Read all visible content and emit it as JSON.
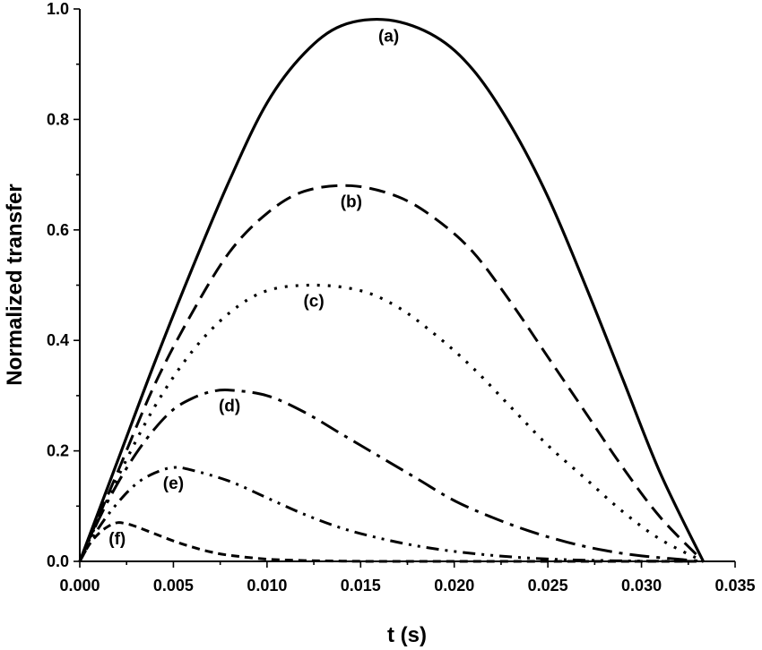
{
  "chart_data": {
    "type": "line",
    "title": "",
    "xlabel": "t (s)",
    "ylabel": "Normalized transfer",
    "xlim": [
      0,
      0.035
    ],
    "ylim": [
      0,
      1.0
    ],
    "x_ticks": [
      "0.000",
      "0.005",
      "0.010",
      "0.015",
      "0.020",
      "0.025",
      "0.030",
      "0.035"
    ],
    "y_ticks": [
      "0.0",
      "0.2",
      "0.4",
      "0.6",
      "0.8",
      "1.0"
    ],
    "grid": false,
    "legend": "none",
    "x_end": 0.0333,
    "series": [
      {
        "label": "(a)",
        "line_style": "solid",
        "peak_x": 0.0165,
        "peak_y": 0.98,
        "values": [
          [
            0.0,
            0.0
          ],
          [
            0.002,
            0.18
          ],
          [
            0.004,
            0.36
          ],
          [
            0.006,
            0.53
          ],
          [
            0.008,
            0.69
          ],
          [
            0.01,
            0.83
          ],
          [
            0.012,
            0.92
          ],
          [
            0.014,
            0.97
          ],
          [
            0.0165,
            0.98
          ],
          [
            0.019,
            0.95
          ],
          [
            0.021,
            0.89
          ],
          [
            0.023,
            0.79
          ],
          [
            0.025,
            0.66
          ],
          [
            0.027,
            0.5
          ],
          [
            0.029,
            0.33
          ],
          [
            0.031,
            0.16
          ],
          [
            0.0333,
            0.0
          ]
        ]
      },
      {
        "label": "(b)",
        "line_style": "dashed",
        "peak_x": 0.0145,
        "peak_y": 0.68,
        "values": [
          [
            0.0,
            0.0
          ],
          [
            0.002,
            0.16
          ],
          [
            0.004,
            0.32
          ],
          [
            0.006,
            0.45
          ],
          [
            0.008,
            0.56
          ],
          [
            0.01,
            0.63
          ],
          [
            0.012,
            0.67
          ],
          [
            0.0145,
            0.68
          ],
          [
            0.017,
            0.66
          ],
          [
            0.019,
            0.62
          ],
          [
            0.021,
            0.56
          ],
          [
            0.023,
            0.47
          ],
          [
            0.025,
            0.37
          ],
          [
            0.027,
            0.27
          ],
          [
            0.029,
            0.17
          ],
          [
            0.031,
            0.08
          ],
          [
            0.0333,
            0.0
          ]
        ]
      },
      {
        "label": "(c)",
        "line_style": "dotted",
        "peak_x": 0.0125,
        "peak_y": 0.5,
        "values": [
          [
            0.0,
            0.0
          ],
          [
            0.002,
            0.15
          ],
          [
            0.004,
            0.28
          ],
          [
            0.006,
            0.38
          ],
          [
            0.008,
            0.45
          ],
          [
            0.01,
            0.49
          ],
          [
            0.0125,
            0.5
          ],
          [
            0.015,
            0.49
          ],
          [
            0.017,
            0.46
          ],
          [
            0.019,
            0.41
          ],
          [
            0.021,
            0.35
          ],
          [
            0.023,
            0.28
          ],
          [
            0.025,
            0.21
          ],
          [
            0.027,
            0.15
          ],
          [
            0.029,
            0.09
          ],
          [
            0.031,
            0.04
          ],
          [
            0.0333,
            0.0
          ]
        ]
      },
      {
        "label": "(d)",
        "line_style": "dash-dot",
        "peak_x": 0.008,
        "peak_y": 0.31,
        "values": [
          [
            0.0,
            0.0
          ],
          [
            0.001,
            0.075
          ],
          [
            0.002,
            0.14
          ],
          [
            0.003,
            0.195
          ],
          [
            0.004,
            0.24
          ],
          [
            0.005,
            0.275
          ],
          [
            0.006,
            0.295
          ],
          [
            0.007,
            0.307
          ],
          [
            0.008,
            0.31
          ],
          [
            0.01,
            0.3
          ],
          [
            0.012,
            0.27
          ],
          [
            0.014,
            0.23
          ],
          [
            0.016,
            0.19
          ],
          [
            0.018,
            0.15
          ],
          [
            0.02,
            0.11
          ],
          [
            0.022,
            0.08
          ],
          [
            0.024,
            0.055
          ],
          [
            0.026,
            0.035
          ],
          [
            0.028,
            0.02
          ],
          [
            0.03,
            0.01
          ],
          [
            0.0333,
            0.0
          ]
        ]
      },
      {
        "label": "(e)",
        "line_style": "dash-dot-dot",
        "peak_x": 0.005,
        "peak_y": 0.17,
        "values": [
          [
            0.0,
            0.0
          ],
          [
            0.001,
            0.06
          ],
          [
            0.002,
            0.105
          ],
          [
            0.003,
            0.14
          ],
          [
            0.004,
            0.16
          ],
          [
            0.005,
            0.17
          ],
          [
            0.006,
            0.165
          ],
          [
            0.008,
            0.145
          ],
          [
            0.01,
            0.115
          ],
          [
            0.012,
            0.085
          ],
          [
            0.014,
            0.06
          ],
          [
            0.016,
            0.042
          ],
          [
            0.018,
            0.028
          ],
          [
            0.02,
            0.018
          ],
          [
            0.022,
            0.011
          ],
          [
            0.024,
            0.006
          ],
          [
            0.026,
            0.003
          ],
          [
            0.028,
            0.0015
          ],
          [
            0.03,
            0.0005
          ],
          [
            0.0333,
            0.0
          ]
        ]
      },
      {
        "label": "(f)",
        "line_style": "short-dash",
        "peak_x": 0.002,
        "peak_y": 0.07,
        "values": [
          [
            0.0,
            0.0
          ],
          [
            0.0005,
            0.03
          ],
          [
            0.001,
            0.05
          ],
          [
            0.0015,
            0.063
          ],
          [
            0.002,
            0.07
          ],
          [
            0.0025,
            0.068
          ],
          [
            0.003,
            0.063
          ],
          [
            0.004,
            0.05
          ],
          [
            0.005,
            0.037
          ],
          [
            0.006,
            0.026
          ],
          [
            0.007,
            0.017
          ],
          [
            0.008,
            0.011
          ],
          [
            0.01,
            0.004
          ],
          [
            0.012,
            0.0015
          ],
          [
            0.014,
            0.0005
          ],
          [
            0.017,
            0.0
          ],
          [
            0.0333,
            0.0
          ]
        ]
      }
    ]
  }
}
